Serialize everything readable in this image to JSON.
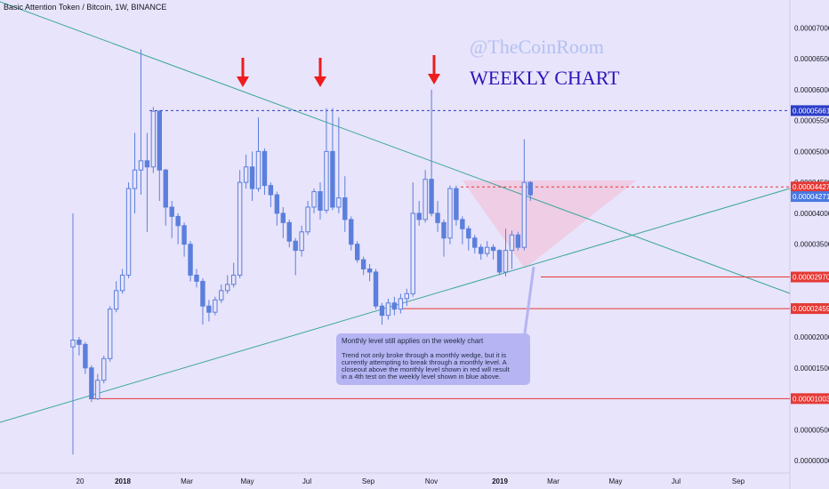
{
  "header": {
    "title": "Basic Attention Token / Bitcoin, 1W, BINANCE"
  },
  "watermark": "@TheCoinRoom",
  "headline": "WEEKLY CHART",
  "note": {
    "title": "Monthly level still applies on the weekly chart",
    "lines": [
      "Trend not only broke through a monthly wedge, but it is",
      "currently attempting to break through a monthly level. A",
      "closeout above the monthly level shown in red will result",
      "in a 4th test on the weekly level shown in blue above."
    ]
  },
  "colors": {
    "background": "#e8e4fb",
    "candle": "#5b7fdc",
    "trendline": "#3aa89a",
    "level_red": "#e53935",
    "level_blue": "#2a3cc8",
    "wedge_fill": "#f2b9d3",
    "arrow": "#ee1c1c",
    "note_box": "#b6b4f2"
  },
  "chart_data": {
    "type": "candlestick",
    "title": "Basic Attention Token / Bitcoin, 1W, BINANCE",
    "x_tick_labels": [
      "20",
      "2018",
      "Mar",
      "May",
      "Jul",
      "Sep",
      "Nov",
      "2019",
      "Mar",
      "May",
      "Jul",
      "Sep"
    ],
    "y_tick_labels": [
      "0.00007000",
      "0.00006500",
      "0.00006000",
      "0.00005500",
      "0.00005000",
      "0.00004500",
      "0.00004000",
      "0.00003500",
      "0.00003000",
      "0.00002500",
      "0.00002000",
      "0.00001500",
      "0.00001000",
      "0.00000500",
      "0.00000000"
    ],
    "ylim": [
      -2e-06,
      7.45e-05
    ],
    "levels": [
      {
        "value": "0.00005661",
        "color": "#2a3cc8",
        "style": "dashed"
      },
      {
        "value": "0.00004427",
        "color": "#e53935",
        "style": "dashed"
      },
      {
        "value": "0.00002970",
        "color": "#e53935",
        "style": "solid"
      },
      {
        "value": "0.00002459",
        "color": "#e53935",
        "style": "solid"
      },
      {
        "value": "0.00001003",
        "color": "#e53935",
        "style": "solid"
      }
    ],
    "last_price": "0.00004271",
    "candles": [
      [
        1.84e-05,
        1.95e-05,
        4e-05,
        1e-06
      ],
      [
        1.95e-05,
        1.88e-05,
        2e-05,
        1.7e-05
      ],
      [
        1.88e-05,
        1.5e-05,
        1.92e-05,
        1.4e-05
      ],
      [
        1.5e-05,
        1e-05,
        1.54e-05,
        9.5e-06
      ],
      [
        1e-05,
        1.3e-05,
        1.4e-05,
        9.8e-06
      ],
      [
        1.3e-05,
        1.65e-05,
        1.7e-05,
        1.25e-05
      ],
      [
        1.65e-05,
        2.45e-05,
        2.5e-05,
        1.6e-05
      ],
      [
        2.45e-05,
        2.75e-05,
        2.9e-05,
        2.4e-05
      ],
      [
        2.75e-05,
        3e-05,
        3.1e-05,
        2.7e-05
      ],
      [
        3e-05,
        4.4e-05,
        4.5e-05,
        2.95e-05
      ],
      [
        4.4e-05,
        4.7e-05,
        5.3e-05,
        4e-05
      ],
      [
        4.7e-05,
        4.85e-05,
        6.65e-05,
        4.3e-05
      ],
      [
        4.85e-05,
        4.75e-05,
        5.3e-05,
        3.7e-05
      ],
      [
        4.75e-05,
        5.65e-05,
        5.72e-05,
        4.65e-05
      ],
      [
        5.65e-05,
        4.7e-05,
        5.67e-05,
        4.2e-05
      ],
      [
        4.7e-05,
        4.1e-05,
        4.72e-05,
        3.8e-05
      ],
      [
        4.1e-05,
        3.95e-05,
        4.2e-05,
        3.6e-05
      ],
      [
        3.95e-05,
        3.8e-05,
        4e-05,
        3.5e-05
      ],
      [
        3.8e-05,
        3.5e-05,
        3.85e-05,
        3.3e-05
      ],
      [
        3.5e-05,
        3e-05,
        3.55e-05,
        2.9e-05
      ],
      [
        3e-05,
        2.9e-05,
        3.1e-05,
        2.8e-05
      ],
      [
        2.9e-05,
        2.5e-05,
        2.95e-05,
        2.2e-05
      ],
      [
        2.5e-05,
        2.4e-05,
        2.6e-05,
        2.25e-05
      ],
      [
        2.4e-05,
        2.6e-05,
        2.65e-05,
        2.35e-05
      ],
      [
        2.6e-05,
        2.75e-05,
        2.85e-05,
        2.55e-05
      ],
      [
        2.75e-05,
        2.85e-05,
        3e-05,
        2.7e-05
      ],
      [
        2.85e-05,
        3e-05,
        3.2e-05,
        2.8e-05
      ],
      [
        3e-05,
        4.5e-05,
        4.7e-05,
        2.95e-05
      ],
      [
        4.5e-05,
        4.75e-05,
        4.95e-05,
        4.4e-05
      ],
      [
        4.75e-05,
        4.4e-05,
        5e-05,
        4.2e-05
      ],
      [
        4.4e-05,
        5e-05,
        5.55e-05,
        4.35e-05
      ],
      [
        5e-05,
        4.45e-05,
        5.05e-05,
        4.3e-05
      ],
      [
        4.45e-05,
        4.3e-05,
        4.5e-05,
        4.1e-05
      ],
      [
        4.3e-05,
        4e-05,
        4.35e-05,
        3.8e-05
      ],
      [
        4e-05,
        3.85e-05,
        4.1e-05,
        3.6e-05
      ],
      [
        3.85e-05,
        3.55e-05,
        3.9e-05,
        3.45e-05
      ],
      [
        3.55e-05,
        3.4e-05,
        3.6e-05,
        3e-05
      ],
      [
        3.4e-05,
        3.7e-05,
        3.8e-05,
        3.3e-05
      ],
      [
        3.7e-05,
        4.1e-05,
        4.2e-05,
        3.65e-05
      ],
      [
        4.1e-05,
        4.35e-05,
        4.4e-05,
        4e-05
      ],
      [
        4.35e-05,
        4.05e-05,
        4.5e-05,
        3.9e-05
      ],
      [
        4.05e-05,
        5e-05,
        5.7e-05,
        4e-05
      ],
      [
        5e-05,
        4.1e-05,
        5.7e-05,
        4.05e-05
      ],
      [
        4.1e-05,
        4.25e-05,
        5.55e-05,
        4e-05
      ],
      [
        4.25e-05,
        3.9e-05,
        4.6e-05,
        3.7e-05
      ],
      [
        3.9e-05,
        3.5e-05,
        3.95e-05,
        3.4e-05
      ],
      [
        3.5e-05,
        3.25e-05,
        3.55e-05,
        3.2e-05
      ],
      [
        3.25e-05,
        3.1e-05,
        3.3e-05,
        3e-05
      ],
      [
        3.1e-05,
        3.05e-05,
        3.18e-05,
        2.9e-05
      ],
      [
        3.05e-05,
        2.5e-05,
        3.1e-05,
        2.45e-05
      ],
      [
        2.5e-05,
        2.35e-05,
        2.55e-05,
        2.2e-05
      ],
      [
        2.35e-05,
        2.55e-05,
        2.62e-05,
        2.28e-05
      ],
      [
        2.55e-05,
        2.45e-05,
        2.65e-05,
        2.35e-05
      ],
      [
        2.45e-05,
        2.62e-05,
        2.7e-05,
        2.38e-05
      ],
      [
        2.62e-05,
        2.7e-05,
        2.78e-05,
        2.5e-05
      ],
      [
        2.7e-05,
        4e-05,
        4.5e-05,
        2.65e-05
      ],
      [
        4e-05,
        3.9e-05,
        4.2e-05,
        3.8e-05
      ],
      [
        3.9e-05,
        4.55e-05,
        4.7e-05,
        3.85e-05
      ],
      [
        4.55e-05,
        4e-05,
        6e-05,
        3.95e-05
      ],
      [
        4e-05,
        3.85e-05,
        4.2e-05,
        3.7e-05
      ],
      [
        3.85e-05,
        3.6e-05,
        3.9e-05,
        3.3e-05
      ],
      [
        3.6e-05,
        4.4e-05,
        4.45e-05,
        3.5e-05
      ],
      [
        4.4e-05,
        3.9e-05,
        4.45e-05,
        3.8e-05
      ],
      [
        3.9e-05,
        3.75e-05,
        3.95e-05,
        3.5e-05
      ],
      [
        3.75e-05,
        3.6e-05,
        3.8e-05,
        3.4e-05
      ],
      [
        3.6e-05,
        3.45e-05,
        3.65e-05,
        3.35e-05
      ],
      [
        3.45e-05,
        3.35e-05,
        3.5e-05,
        3.25e-05
      ],
      [
        3.35e-05,
        3.45e-05,
        3.55e-05,
        3.3e-05
      ],
      [
        3.45e-05,
        3.4e-05,
        3.5e-05,
        3.25e-05
      ],
      [
        3.4e-05,
        3.05e-05,
        3.42e-05,
        3e-05
      ],
      [
        3.05e-05,
        3.4e-05,
        3.75e-05,
        2.98e-05
      ],
      [
        3.4e-05,
        3.65e-05,
        3.72e-05,
        3.1e-05
      ],
      [
        3.65e-05,
        3.45e-05,
        3.7e-05,
        3.4e-05
      ],
      [
        3.45e-05,
        4.5e-05,
        5.2e-05,
        3.4e-05
      ],
      [
        4.5e-05,
        4.3e-05,
        4.52e-05,
        4.2e-05
      ]
    ]
  }
}
